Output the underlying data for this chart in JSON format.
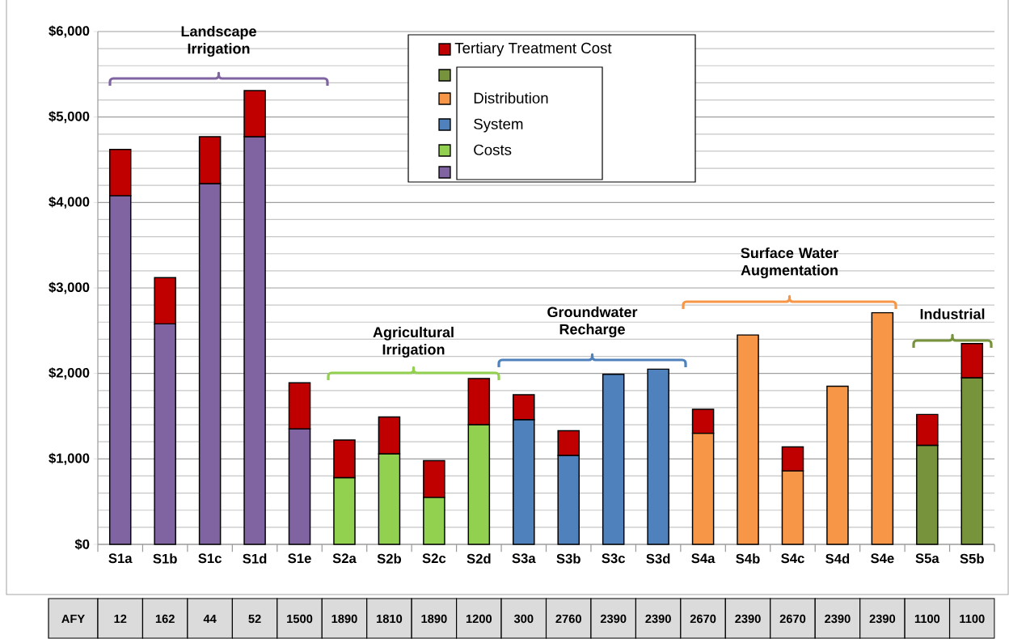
{
  "chart_data": [
    {
      "type": "bar",
      "stacked": true,
      "categories": [
        "S1a",
        "S1b",
        "S1c",
        "S1d",
        "S1e",
        "S2a",
        "S2b",
        "S2c",
        "S2d",
        "S3a",
        "S3b",
        "S3c",
        "S3d",
        "S4a",
        "S4b",
        "S4c",
        "S4d",
        "S4e",
        "S5a",
        "S5b"
      ],
      "series": [
        {
          "name": "Distribution System Costs",
          "colors": [
            "#8064a2",
            "#8064a2",
            "#8064a2",
            "#8064a2",
            "#8064a2",
            "#92d050",
            "#92d050",
            "#92d050",
            "#92d050",
            "#4f81bd",
            "#4f81bd",
            "#4f81bd",
            "#4f81bd",
            "#f79646",
            "#f79646",
            "#f79646",
            "#f79646",
            "#f79646",
            "#77933c",
            "#77933c"
          ],
          "values": [
            4080,
            2580,
            4220,
            4770,
            1350,
            780,
            1060,
            550,
            1400,
            1460,
            1040,
            1990,
            2050,
            1300,
            2450,
            860,
            1850,
            2710,
            1160,
            1950
          ]
        },
        {
          "name": "Tertiary Treatment Cost",
          "color": "#c00000",
          "values": [
            540,
            540,
            550,
            540,
            540,
            440,
            430,
            430,
            540,
            290,
            290,
            null,
            null,
            280,
            null,
            280,
            null,
            null,
            360,
            400
          ]
        }
      ],
      "ylim": [
        0,
        6000
      ],
      "yticks": [
        {
          "value": 0,
          "label": "$0"
        },
        {
          "value": 1000,
          "label": "$1,000"
        },
        {
          "value": 2000,
          "label": "$2,000"
        },
        {
          "value": 3000,
          "label": "$3,000"
        },
        {
          "value": 4000,
          "label": "$4,000"
        },
        {
          "value": 5000,
          "label": "$5,000"
        },
        {
          "value": 6000,
          "label": "$6,000"
        }
      ],
      "grid": "y",
      "legend": "top",
      "annotations": [
        "Landscape Irrigation",
        "Agricultural Irrigation",
        "Groundwater Recharge",
        "Surface Water Augmentation",
        "Industrial"
      ]
    },
    {
      "type": "other",
      "title": "AFY",
      "data_labels": true,
      "values": [
        12,
        162,
        44,
        52,
        1500,
        1890,
        1810,
        1890,
        1200,
        300,
        2760,
        2390,
        2390,
        2670,
        2390,
        2670,
        2390,
        2390,
        1100,
        1100
      ]
    }
  ]
}
